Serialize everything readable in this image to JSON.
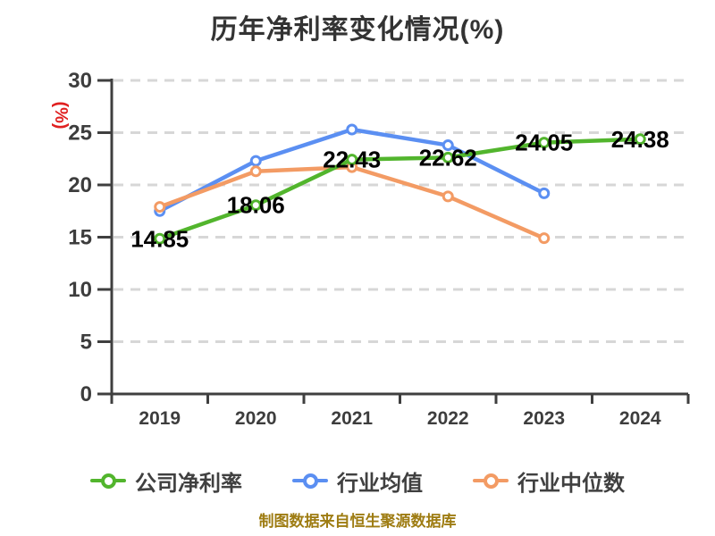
{
  "title": "历年净利率变化情况(%)",
  "footer_note": "制图数据来自恒生聚源数据库",
  "colors": {
    "title_text": "#333333",
    "axis": "#3f3f3f",
    "tick_label": "#3d3d3d",
    "gridline": "#d7d7d7",
    "data_label": "#000000",
    "y_unit_label": "#e02020",
    "footer_text": "#9e7c12",
    "series_company": "#52b52d",
    "series_industry_avg": "#5b8ff2",
    "series_industry_median": "#f39b64",
    "marker_fill": "#ffffff"
  },
  "chart_data": {
    "type": "line",
    "title": "历年净利率变化情况(%)",
    "categories": [
      "2019",
      "2020",
      "2021",
      "2022",
      "2023",
      "2024"
    ],
    "xlabel": "",
    "ylabel": "(%)",
    "ylim": [
      0,
      30
    ],
    "y_ticks": [
      0,
      5,
      10,
      15,
      20,
      25,
      30
    ],
    "grid": "horizontal-dashed",
    "legend_position": "bottom",
    "series": [
      {
        "id": "company-net-margin",
        "name": "公司净利率",
        "color": "#52b52d",
        "values": [
          14.85,
          18.06,
          22.43,
          22.62,
          24.05,
          24.38
        ],
        "point_labels": [
          "14.85",
          "18.06",
          "22.43",
          "22.62",
          "24.05",
          "24.38"
        ],
        "labeled": true
      },
      {
        "id": "industry-average",
        "name": "行业均值",
        "color": "#5b8ff2",
        "values": [
          17.5,
          22.3,
          25.3,
          23.8,
          19.2,
          null
        ],
        "labeled": false
      },
      {
        "id": "industry-median",
        "name": "行业中位数",
        "color": "#f39b64",
        "values": [
          17.9,
          21.3,
          21.7,
          18.9,
          14.9,
          null
        ],
        "labeled": false
      }
    ]
  }
}
